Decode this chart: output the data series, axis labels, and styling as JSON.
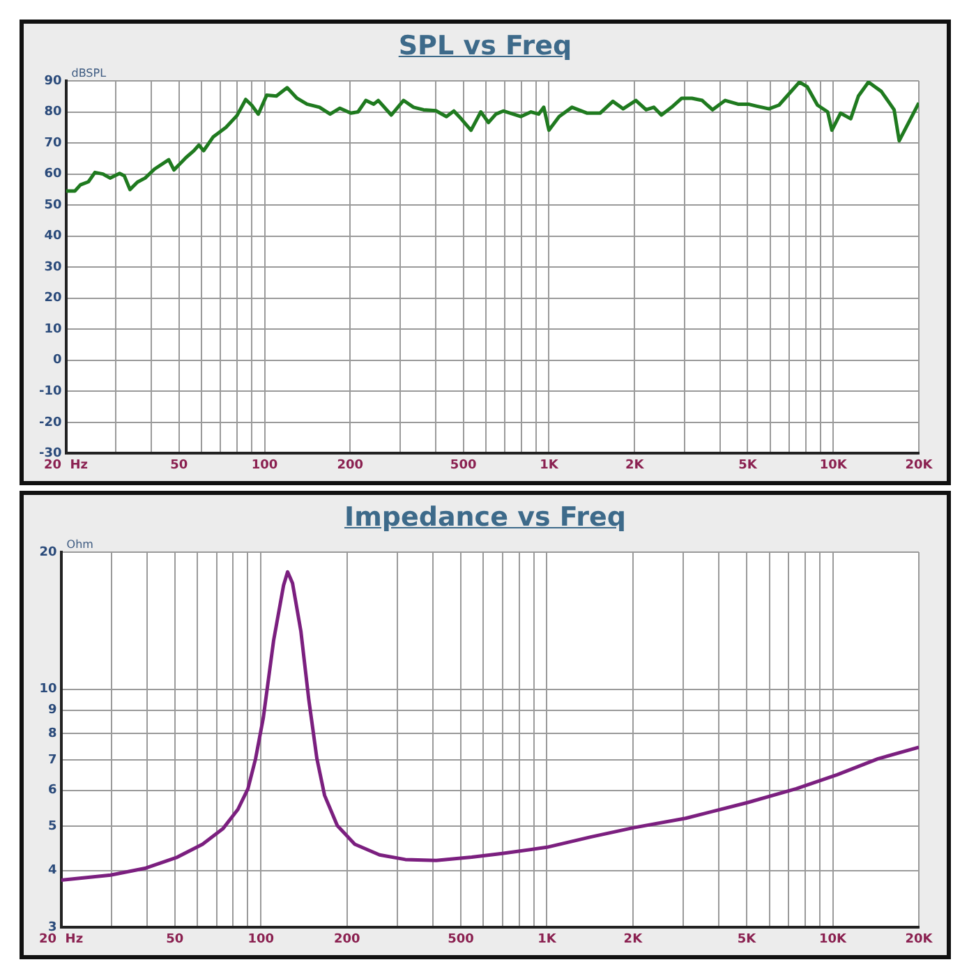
{
  "chart_data": [
    {
      "type": "line",
      "title": "SPL vs Freq",
      "ylabel": "dBSPL",
      "log": "x",
      "grid": true,
      "marker": "none",
      "line_style": "solid",
      "x": [
        20,
        21.5,
        22.5,
        24,
        25.3,
        27,
        28.6,
        30.9,
        32.1,
        33.6,
        35.7,
        38,
        41,
        46,
        48,
        52.9,
        56.4,
        58.7,
        61,
        66,
        73.1,
        79.9,
        85.8,
        90,
        95,
        101.7,
        110,
        120,
        130,
        141,
        156,
        170,
        184,
        201,
        213,
        227,
        242,
        251,
        279,
        308,
        334,
        362,
        400,
        436,
        463,
        491,
        532,
        576,
        613,
        651,
        691,
        796,
        865,
        920,
        959,
        1000,
        1086,
        1205,
        1364,
        1513,
        1678,
        1823,
        2022,
        2197,
        2338,
        2486,
        2701,
        2931,
        3183,
        3460,
        3760,
        4168,
        4626,
        5030,
        5357,
        5940,
        6446,
        7000,
        7600,
        8100,
        8800,
        9560,
        9890,
        10610,
        11520,
        12260,
        13300,
        14760,
        16370,
        17060,
        20000
      ],
      "series": [
        {
          "color": "#1f7a1f",
          "values": [
            54.5,
            54.5,
            56.5,
            57.5,
            60.5,
            60,
            58.7,
            60.2,
            59.4,
            55,
            57.4,
            58.7,
            61.6,
            64.6,
            61.3,
            65.3,
            67.5,
            69.3,
            67.5,
            72,
            75,
            78.8,
            84,
            82.2,
            79.3,
            85.4,
            85.1,
            87.8,
            84.4,
            82.5,
            81.5,
            79.3,
            81.2,
            79.6,
            80,
            83.7,
            82.5,
            83.7,
            79,
            83.7,
            81.5,
            80.7,
            80.4,
            78.5,
            80.3,
            77.8,
            74.1,
            80,
            76.6,
            79.3,
            80.3,
            78.5,
            80,
            79.3,
            81.5,
            74.1,
            78.5,
            81.5,
            79.6,
            79.6,
            83.4,
            81,
            83.7,
            80.7,
            81.5,
            79,
            81.5,
            84.4,
            84.4,
            83.7,
            80.7,
            83.7,
            82.5,
            82.5,
            81.9,
            81,
            82.2,
            85.9,
            89.6,
            88.1,
            82.2,
            80,
            74.1,
            79.6,
            77.8,
            85.1,
            89.6,
            86.6,
            80.7,
            70.7,
            82.9
          ]
        }
      ],
      "xlim": [
        20,
        20000
      ],
      "xticks": [
        {
          "value": 20,
          "label": "20  Hz"
        },
        {
          "value": 30,
          "label": null
        },
        {
          "value": 40,
          "label": null
        },
        50,
        {
          "value": 60,
          "label": null
        },
        {
          "value": 70,
          "label": null
        },
        {
          "value": 80,
          "label": null
        },
        {
          "value": 90,
          "label": null
        },
        100,
        200,
        {
          "value": 300,
          "label": null
        },
        {
          "value": 400,
          "label": null
        },
        500,
        {
          "value": 600,
          "label": null
        },
        {
          "value": 700,
          "label": null
        },
        {
          "value": 800,
          "label": null
        },
        {
          "value": 900,
          "label": null
        },
        {
          "value": 1000,
          "label": "1K"
        },
        {
          "value": 2000,
          "label": "2K"
        },
        {
          "value": 3000,
          "label": null
        },
        {
          "value": 4000,
          "label": null
        },
        {
          "value": 5000,
          "label": "5K"
        },
        {
          "value": 6000,
          "label": null
        },
        {
          "value": 7000,
          "label": null
        },
        {
          "value": 8000,
          "label": null
        },
        {
          "value": 9000,
          "label": null
        },
        {
          "value": 10000,
          "label": "10K"
        },
        {
          "value": 20000,
          "label": "20K"
        }
      ],
      "ylim": [
        -30,
        90
      ],
      "yticks": [
        -30,
        -20,
        -10,
        0,
        10,
        20,
        30,
        40,
        50,
        60,
        70,
        80,
        90
      ]
    },
    {
      "type": "line",
      "title": "Impedance vs Freq",
      "ylabel": "Ohm",
      "log": "xy",
      "grid": true,
      "marker": "none",
      "line_style": "solid",
      "x": [
        20,
        29.8,
        39.6,
        50.6,
        62.5,
        73.6,
        83.1,
        90.1,
        95.8,
        102,
        110.8,
        120,
        124,
        129,
        138,
        147,
        157,
        167,
        185,
        213,
        260,
        320,
        410,
        546,
        698,
        1000,
        1422,
        2020,
        3060,
        5030,
        7450,
        10350,
        14400,
        20000
      ],
      "series": [
        {
          "color": "#7b1f7f",
          "values": [
            3.81,
            3.91,
            4.05,
            4.27,
            4.57,
            4.94,
            5.45,
            6.05,
            7.04,
            8.67,
            12.8,
            16.9,
            18.1,
            17.1,
            13.4,
            9.51,
            7.04,
            5.85,
            5.02,
            4.57,
            4.33,
            4.23,
            4.21,
            4.28,
            4.36,
            4.5,
            4.74,
            4.97,
            5.21,
            5.64,
            6.05,
            6.49,
            7.04,
            7.46
          ]
        }
      ],
      "xlim": [
        20,
        20000
      ],
      "xticks": [
        {
          "value": 20,
          "label": "20  Hz"
        },
        {
          "value": 30,
          "label": null
        },
        {
          "value": 40,
          "label": null
        },
        50,
        {
          "value": 60,
          "label": null
        },
        {
          "value": 70,
          "label": null
        },
        {
          "value": 80,
          "label": null
        },
        {
          "value": 90,
          "label": null
        },
        100,
        200,
        {
          "value": 300,
          "label": null
        },
        {
          "value": 400,
          "label": null
        },
        500,
        {
          "value": 600,
          "label": null
        },
        {
          "value": 700,
          "label": null
        },
        {
          "value": 800,
          "label": null
        },
        {
          "value": 900,
          "label": null
        },
        {
          "value": 1000,
          "label": "1K"
        },
        {
          "value": 2000,
          "label": "2K"
        },
        {
          "value": 3000,
          "label": null
        },
        {
          "value": 4000,
          "label": null
        },
        {
          "value": 5000,
          "label": "5K"
        },
        {
          "value": 6000,
          "label": null
        },
        {
          "value": 7000,
          "label": null
        },
        {
          "value": 8000,
          "label": null
        },
        {
          "value": 9000,
          "label": null
        },
        {
          "value": 10000,
          "label": "10K"
        },
        {
          "value": 20000,
          "label": "20K"
        }
      ],
      "ylim": [
        3,
        20
      ],
      "yticks": [
        3,
        4,
        5,
        6,
        7,
        8,
        9,
        10,
        20
      ]
    }
  ]
}
